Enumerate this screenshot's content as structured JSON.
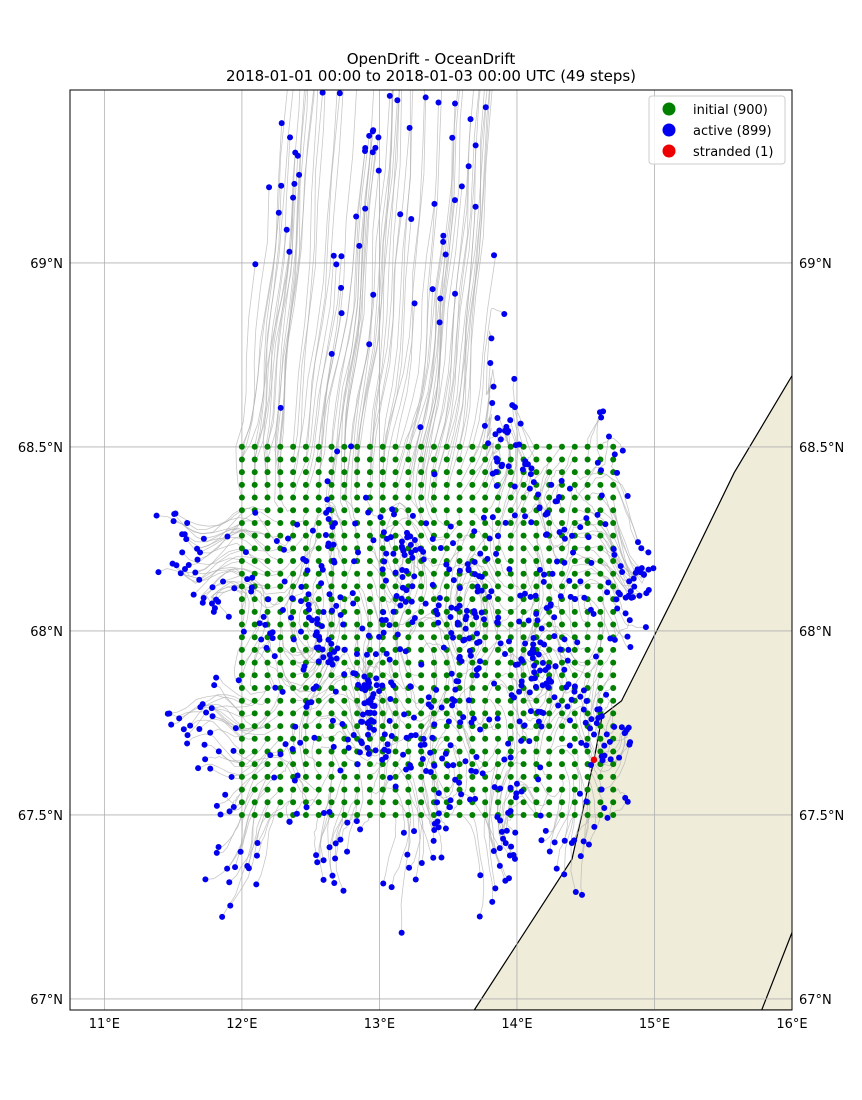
{
  "chart_data": {
    "type": "scatter",
    "title": "OpenDrift - OceanDrift",
    "subtitle": "2018-01-01 00:00 to 2018-01-03 00:00 UTC (49 steps)",
    "xlim": [
      10.75,
      16.0
    ],
    "ylim": [
      66.97,
      69.47
    ],
    "x_ticks": [
      11,
      12,
      13,
      14,
      15,
      16
    ],
    "x_tick_labels": [
      "11°E",
      "12°E",
      "13°E",
      "14°E",
      "15°E",
      "16°E"
    ],
    "y_ticks": [
      67.0,
      67.5,
      68.0,
      68.5,
      69.0
    ],
    "y_tick_labels": [
      "67°N",
      "67.5°N",
      "68°N",
      "68.5°N",
      "69°N"
    ],
    "grid": true,
    "legend_position": "top-right",
    "legend": [
      {
        "label": "initial (900)",
        "color": "#007f00"
      },
      {
        "label": "active (899)",
        "color": "#0000ee"
      },
      {
        "label": "stranded (1)",
        "color": "#ee0000"
      }
    ],
    "initial_grid": {
      "lon_start": 12.0,
      "lon_step": 0.0931,
      "lon_count": 30,
      "lat_start": 67.5,
      "lat_step": 0.0345,
      "lat_count": 30
    },
    "stranded_point": {
      "lon": 14.56,
      "lat": 67.65
    },
    "land_color": "#efecd9",
    "trajectory_color": "#b0b0b0"
  }
}
